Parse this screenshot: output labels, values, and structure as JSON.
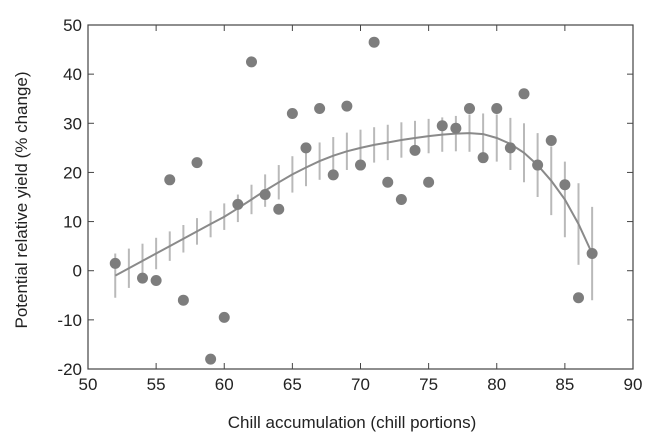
{
  "chart_data": {
    "type": "scatter",
    "xlabel": "Chill accumulation (chill portions)",
    "ylabel": "Potential relative yield (% change)",
    "xlim": [
      50,
      90
    ],
    "ylim": [
      -20,
      50
    ],
    "x_ticks": [
      50,
      55,
      60,
      65,
      70,
      75,
      80,
      85,
      90
    ],
    "y_ticks": [
      -20,
      -10,
      0,
      10,
      20,
      30,
      40,
      50
    ],
    "grid": false,
    "legend": "none",
    "colors": {
      "points": "#7d7d7d",
      "fit_line": "#8a8a8a",
      "error_bars": "#b9b9b9",
      "axes": "#444444"
    },
    "observations": [
      {
        "x": 52,
        "y": 1.5
      },
      {
        "x": 54,
        "y": -1.5
      },
      {
        "x": 55,
        "y": -2
      },
      {
        "x": 56,
        "y": 18.5
      },
      {
        "x": 57,
        "y": -6
      },
      {
        "x": 58,
        "y": 22
      },
      {
        "x": 59,
        "y": -18
      },
      {
        "x": 60,
        "y": -9.5
      },
      {
        "x": 61,
        "y": 13.5
      },
      {
        "x": 62,
        "y": 42.5
      },
      {
        "x": 63,
        "y": 15.5
      },
      {
        "x": 64,
        "y": 12.5
      },
      {
        "x": 65,
        "y": 32
      },
      {
        "x": 66,
        "y": 25
      },
      {
        "x": 67,
        "y": 33
      },
      {
        "x": 68,
        "y": 19.5
      },
      {
        "x": 69,
        "y": 33.5
      },
      {
        "x": 70,
        "y": 21.5
      },
      {
        "x": 71,
        "y": 46.5
      },
      {
        "x": 72,
        "y": 18
      },
      {
        "x": 73,
        "y": 14.5
      },
      {
        "x": 74,
        "y": 24.5
      },
      {
        "x": 75,
        "y": 18
      },
      {
        "x": 76,
        "y": 29.5
      },
      {
        "x": 77,
        "y": 29
      },
      {
        "x": 78,
        "y": 33
      },
      {
        "x": 79,
        "y": 23
      },
      {
        "x": 80,
        "y": 33
      },
      {
        "x": 81,
        "y": 25
      },
      {
        "x": 82,
        "y": 36
      },
      {
        "x": 83,
        "y": 21.5
      },
      {
        "x": 84,
        "y": 26.5
      },
      {
        "x": 85,
        "y": 17.5
      },
      {
        "x": 86,
        "y": -5.5
      },
      {
        "x": 87,
        "y": 3.5
      }
    ],
    "fit": [
      {
        "x": 52,
        "y": -1,
        "lo": -5.5,
        "hi": 3.5
      },
      {
        "x": 53,
        "y": 0.5,
        "lo": -3.5,
        "hi": 4.5
      },
      {
        "x": 54,
        "y": 2,
        "lo": -1.5,
        "hi": 5.5
      },
      {
        "x": 55,
        "y": 3.5,
        "lo": 0.3,
        "hi": 6.7
      },
      {
        "x": 56,
        "y": 5,
        "lo": 2,
        "hi": 8
      },
      {
        "x": 57,
        "y": 6.5,
        "lo": 3.7,
        "hi": 9.3
      },
      {
        "x": 58,
        "y": 8,
        "lo": 5.3,
        "hi": 10.7
      },
      {
        "x": 59,
        "y": 9.5,
        "lo": 6.8,
        "hi": 12.2
      },
      {
        "x": 60,
        "y": 11,
        "lo": 8.3,
        "hi": 13.7
      },
      {
        "x": 61,
        "y": 12.7,
        "lo": 9.9,
        "hi": 15.5
      },
      {
        "x": 62,
        "y": 14.5,
        "lo": 11.5,
        "hi": 17.5
      },
      {
        "x": 63,
        "y": 16.3,
        "lo": 13,
        "hi": 19.6
      },
      {
        "x": 64,
        "y": 18,
        "lo": 14.5,
        "hi": 21.5
      },
      {
        "x": 65,
        "y": 19.6,
        "lo": 15.9,
        "hi": 23.3
      },
      {
        "x": 66,
        "y": 21,
        "lo": 17.2,
        "hi": 24.8
      },
      {
        "x": 67,
        "y": 22.3,
        "lo": 18.5,
        "hi": 26.1
      },
      {
        "x": 68,
        "y": 23.4,
        "lo": 19.6,
        "hi": 27.2
      },
      {
        "x": 69,
        "y": 24.3,
        "lo": 20.5,
        "hi": 28.1
      },
      {
        "x": 70,
        "y": 25,
        "lo": 21.3,
        "hi": 28.7
      },
      {
        "x": 71,
        "y": 25.6,
        "lo": 22,
        "hi": 29.2
      },
      {
        "x": 72,
        "y": 26.1,
        "lo": 22.5,
        "hi": 29.7
      },
      {
        "x": 73,
        "y": 26.6,
        "lo": 23,
        "hi": 30.2
      },
      {
        "x": 74,
        "y": 27,
        "lo": 23.5,
        "hi": 30.5
      },
      {
        "x": 75,
        "y": 27.4,
        "lo": 23.9,
        "hi": 30.9
      },
      {
        "x": 76,
        "y": 27.7,
        "lo": 24.2,
        "hi": 31.2
      },
      {
        "x": 77,
        "y": 27.9,
        "lo": 24.3,
        "hi": 31.5
      },
      {
        "x": 78,
        "y": 28,
        "lo": 24.2,
        "hi": 31.8
      },
      {
        "x": 79,
        "y": 27.8,
        "lo": 23.6,
        "hi": 32
      },
      {
        "x": 80,
        "y": 27,
        "lo": 22.2,
        "hi": 31.8
      },
      {
        "x": 81,
        "y": 25.8,
        "lo": 20.5,
        "hi": 31.1
      },
      {
        "x": 82,
        "y": 24,
        "lo": 18,
        "hi": 30
      },
      {
        "x": 83,
        "y": 21.5,
        "lo": 15,
        "hi": 28
      },
      {
        "x": 84,
        "y": 18.3,
        "lo": 11.3,
        "hi": 25.3
      },
      {
        "x": 85,
        "y": 14.5,
        "lo": 6.8,
        "hi": 22.2
      },
      {
        "x": 86,
        "y": 9.5,
        "lo": 1.2,
        "hi": 17.8
      },
      {
        "x": 87,
        "y": 3.5,
        "lo": -6,
        "hi": 13
      }
    ]
  }
}
